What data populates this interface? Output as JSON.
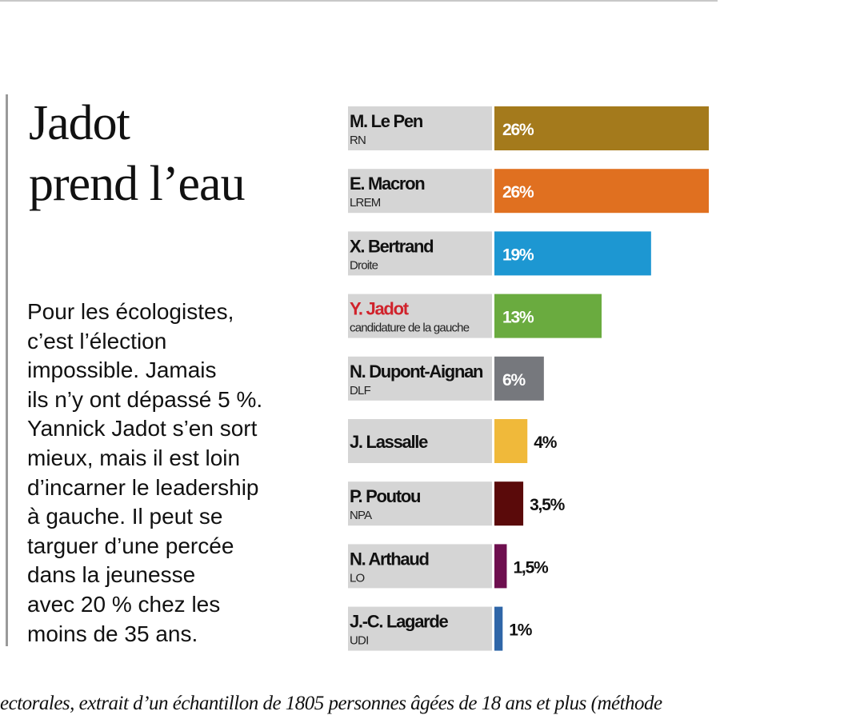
{
  "article": {
    "title_lines": [
      "Jadot",
      "prend l’eau"
    ],
    "lede_lines": [
      "Pour les écologistes,",
      "c’est l’élection",
      "impossible. Jamais",
      "ils n’y ont dépassé 5 %.",
      "Yannick Jadot s’en sort",
      "mieux, mais il est loin",
      "d’incarner le leadership",
      "à gauche. Il peut se",
      "targuer d’une percée",
      "dans la jeunesse",
      "avec 20 % chez les",
      "moins de 35 ans."
    ],
    "footer_text": "ectorales, extrait d’un échantillon de 1805 personnes âgées de 18 ans et plus (méthode"
  },
  "chart_data": {
    "type": "bar",
    "orientation": "horizontal",
    "value_unit": "%",
    "xlim": [
      0,
      26
    ],
    "grid": false,
    "legend": "none",
    "categories": [
      "M. Le Pen",
      "E. Macron",
      "X. Bertrand",
      "Y. Jadot",
      "N. Dupont-Aignan",
      "J. Lassalle",
      "P. Poutou",
      "N. Arthaud",
      "J.-C. Lagarde"
    ],
    "bars": [
      {
        "name": "M. Le Pen",
        "party": "RN",
        "value": 26,
        "label": "26%",
        "color": "#a47a1c",
        "label_inside": true,
        "highlight": false
      },
      {
        "name": "E. Macron",
        "party": "LREM",
        "value": 26,
        "label": "26%",
        "color": "#e07020",
        "label_inside": true,
        "highlight": false
      },
      {
        "name": "X. Bertrand",
        "party": "Droite",
        "value": 19,
        "label": "19%",
        "color": "#1d97d2",
        "label_inside": true,
        "highlight": false
      },
      {
        "name": "Y. Jadot",
        "party": "candidature de la gauche",
        "value": 13,
        "label": "13%",
        "color": "#6aab3f",
        "label_inside": true,
        "highlight": true
      },
      {
        "name": "N. Dupont-Aignan",
        "party": "DLF",
        "value": 6,
        "label": "6%",
        "color": "#76787d",
        "label_inside": true,
        "highlight": false
      },
      {
        "name": "J. Lassalle",
        "party": "",
        "value": 4,
        "label": "4%",
        "color": "#f0b93a",
        "label_inside": false,
        "highlight": false
      },
      {
        "name": "P. Poutou",
        "party": "NPA",
        "value": 3.5,
        "label": "3,5%",
        "color": "#5a0a0a",
        "label_inside": false,
        "highlight": false
      },
      {
        "name": "N. Arthaud",
        "party": "LO",
        "value": 1.5,
        "label": "1,5%",
        "color": "#6e0f4f",
        "label_inside": false,
        "highlight": false
      },
      {
        "name": "J.-C. Lagarde",
        "party": "UDI",
        "value": 1,
        "label": "1%",
        "color": "#2f66a8",
        "label_inside": false,
        "highlight": false
      }
    ],
    "colors": {
      "label_box": "#d5d5d5",
      "highlight_name": "#d0222b",
      "value_text_inside": "#ffffff",
      "value_text_outside": "#111111"
    }
  }
}
